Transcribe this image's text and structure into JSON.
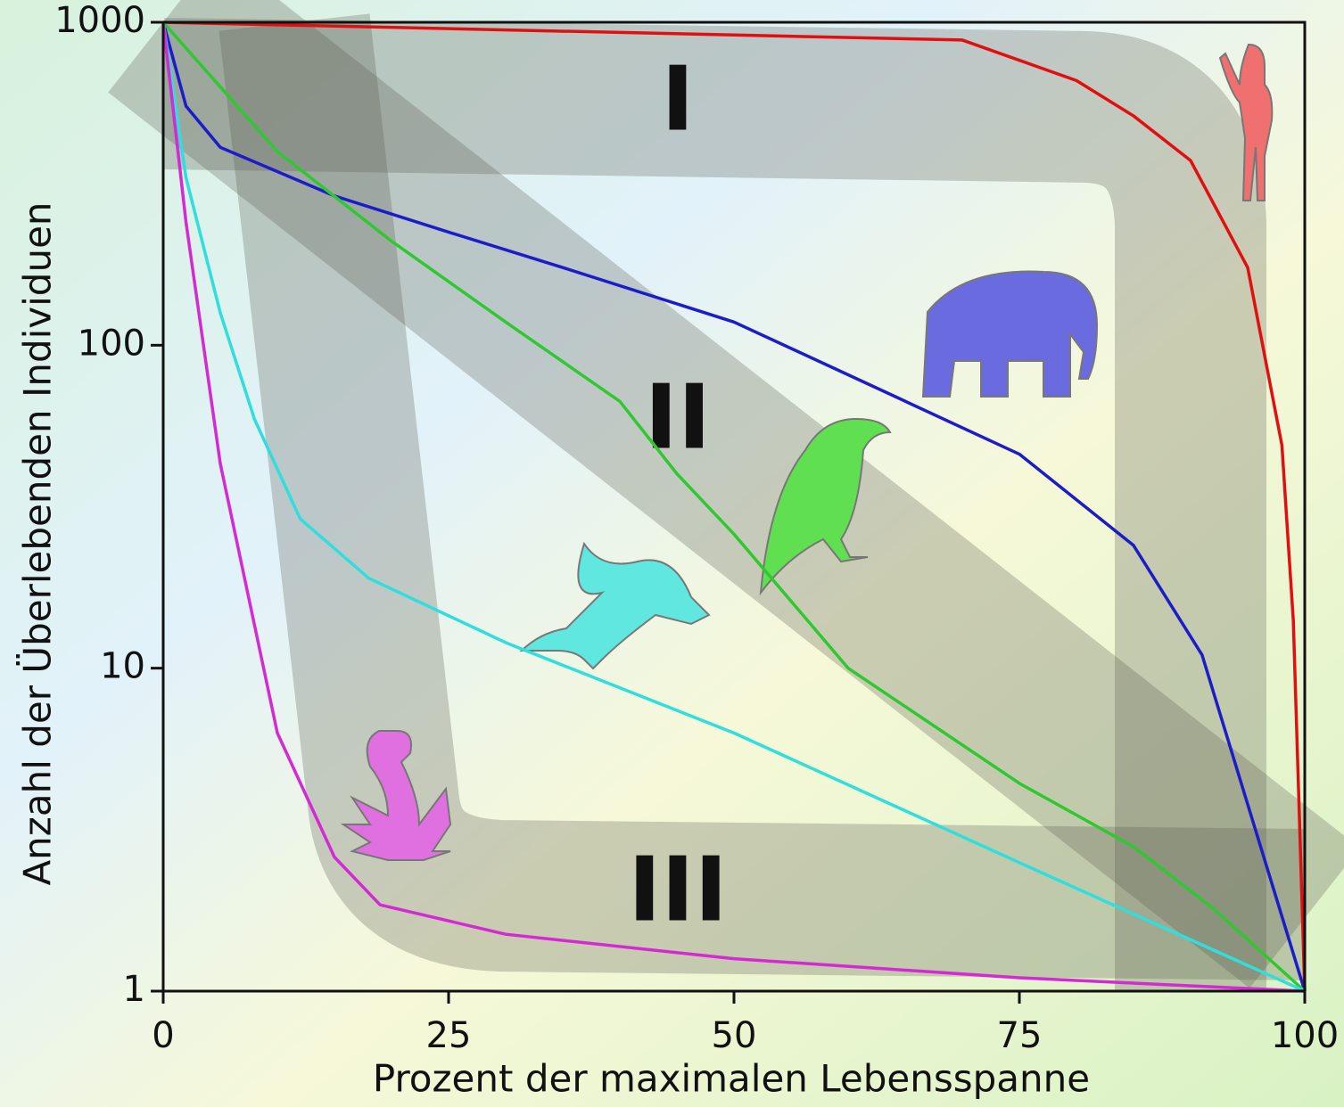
{
  "chart_data": {
    "type": "line",
    "xlabel": "Prozent der maximalen Lebensspanne",
    "ylabel": "Anzahl der Überlebenden Individuen",
    "annotations": [
      "I",
      "II",
      "III"
    ],
    "xlim": [
      0,
      100
    ],
    "xticks": [
      0,
      25,
      50,
      75,
      100
    ],
    "ylim": [
      1,
      1000
    ],
    "yticks": [
      1,
      10,
      100,
      1000
    ],
    "log_y": true,
    "series": [
      {
        "color": "#e01010",
        "x": [
          0,
          70,
          80,
          85,
          90,
          95,
          98,
          99,
          100
        ],
        "values": [
          1000,
          881,
          660,
          513,
          373,
          174,
          49,
          14,
          1
        ]
      },
      {
        "color": "#1c1cc8",
        "x": [
          0,
          2,
          5,
          15,
          25,
          35,
          50,
          60,
          75,
          85,
          91,
          100
        ],
        "values": [
          1000,
          550,
          410,
          290,
          224,
          174,
          118,
          81,
          46,
          24,
          11,
          1
        ]
      },
      {
        "color": "#30c830",
        "x": [
          0,
          10,
          20,
          30,
          40,
          45,
          50,
          60,
          75,
          85,
          92,
          100
        ],
        "values": [
          1000,
          398,
          210,
          118,
          67,
          40,
          26,
          10,
          4.4,
          2.8,
          1.8,
          1
        ]
      },
      {
        "color": "#30dede",
        "x": [
          0,
          2,
          5,
          8,
          12,
          18,
          30,
          50,
          75,
          100
        ],
        "values": [
          1000,
          330,
          126,
          59,
          29,
          19,
          12,
          6.3,
          2.5,
          1
        ]
      },
      {
        "color": "#d42ad4",
        "x": [
          0,
          2,
          5,
          10,
          15,
          19,
          30,
          50,
          75,
          100
        ],
        "values": [
          1000,
          240,
          43,
          6.3,
          2.6,
          1.85,
          1.5,
          1.26,
          1.1,
          1
        ]
      }
    ]
  }
}
